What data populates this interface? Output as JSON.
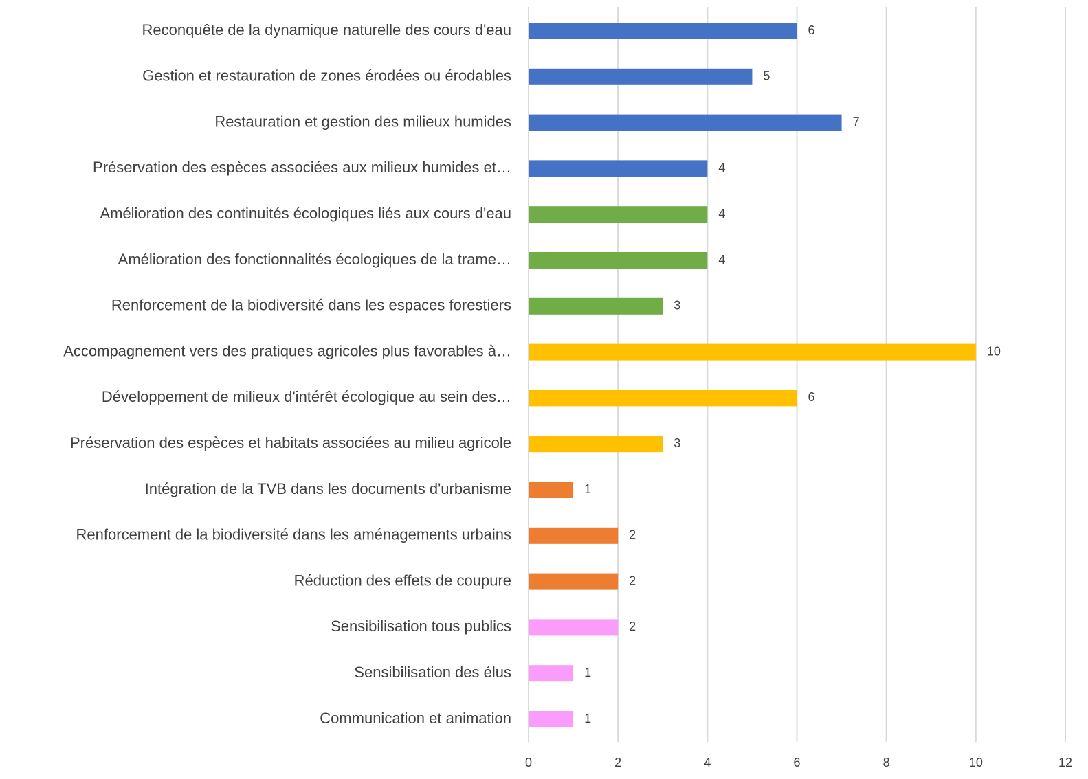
{
  "chart_data": {
    "type": "bar",
    "orientation": "horizontal",
    "categories": [
      "Reconquête de la dynamique naturelle des cours d'eau",
      "Gestion et restauration de zones érodées ou érodables",
      "Restauration et gestion des milieux humides",
      "Préservation des espèces associées aux milieux humides et…",
      "Amélioration des continuités écologiques liés aux cours d'eau",
      "Amélioration des fonctionnalités écologiques de la trame…",
      "Renforcement de la biodiversité dans les espaces forestiers",
      "Accompagnement vers des pratiques agricoles plus favorables à…",
      "Développement de milieux d'intérêt écologique au sein des…",
      "Préservation des espèces et habitats associées au milieu agricole",
      "Intégration de la TVB dans les documents d'urbanisme",
      "Renforcement de la biodiversité dans les aménagements urbains",
      "Réduction des effets de coupure",
      "Sensibilisation tous publics",
      "Sensibilisation des élus",
      "Communication et animation"
    ],
    "values": [
      6,
      5,
      7,
      4,
      4,
      4,
      3,
      10,
      6,
      3,
      1,
      2,
      2,
      2,
      1,
      1
    ],
    "colors": [
      "#4472c4",
      "#4472c4",
      "#4472c4",
      "#4472c4",
      "#70ad47",
      "#70ad47",
      "#70ad47",
      "#ffc000",
      "#ffc000",
      "#ffc000",
      "#ed7d31",
      "#ed7d31",
      "#ed7d31",
      "#fa9cf9",
      "#fa9cf9",
      "#fa9cf9"
    ],
    "xlim": [
      0,
      12
    ],
    "xticks": [
      0,
      2,
      4,
      6,
      8,
      10,
      12
    ],
    "grid": true
  }
}
